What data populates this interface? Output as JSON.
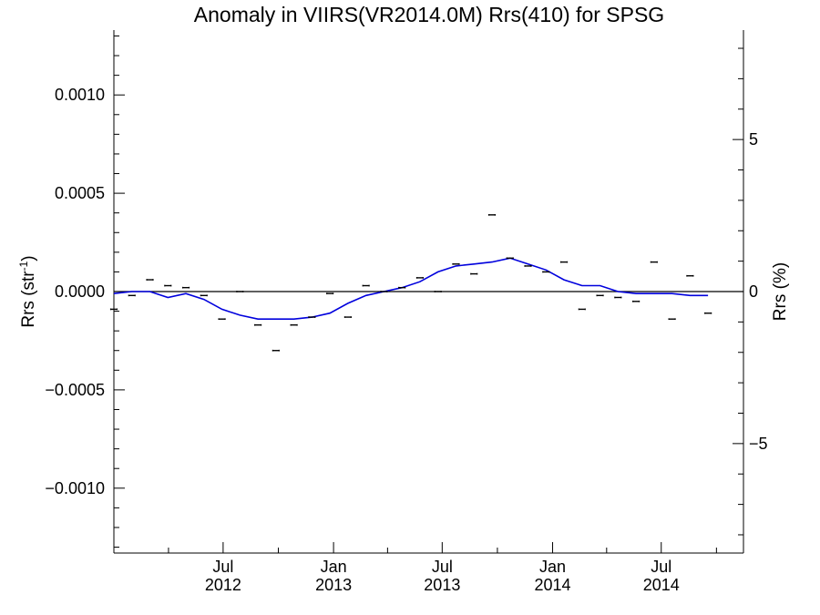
{
  "chart_data": {
    "type": "line",
    "title": "Anomaly in VIIRS(VR2014.0M) Rrs(410) for SPSG",
    "ylabel_left": "Rrs (str",
    "ylabel_left_sup": "-1",
    "ylabel_left_close": ")",
    "ylabel_right": "Rrs (%)",
    "xlabel": "",
    "xlim": [
      "2012-01-01",
      "2014-11-15"
    ],
    "ylim": [
      -0.00133,
      0.00133
    ],
    "ylim_right": [
      -8.6,
      8.6
    ],
    "y_ticks": [
      {
        "value": 0.001,
        "label": "0.0010"
      },
      {
        "value": 0.0005,
        "label": "0.0005"
      },
      {
        "value": 0.0,
        "label": "0.0000"
      },
      {
        "value": -0.0005,
        "label": "−0.0005"
      },
      {
        "value": -0.001,
        "label": "−0.0010"
      }
    ],
    "y_right_ticks": [
      {
        "value": 5,
        "label": "5"
      },
      {
        "value": 0,
        "label": "0"
      },
      {
        "value": -5,
        "label": "−5"
      }
    ],
    "x_ticks": [
      {
        "date": "2012-07-01",
        "month": "Jul",
        "year": "2012"
      },
      {
        "date": "2013-01-01",
        "month": "Jan",
        "year": "2013"
      },
      {
        "date": "2013-07-01",
        "month": "Jul",
        "year": "2013"
      },
      {
        "date": "2014-01-01",
        "month": "Jan",
        "year": "2014"
      },
      {
        "date": "2014-07-01",
        "month": "Jul",
        "year": "2014"
      }
    ],
    "reference_line": 0,
    "points": [
      {
        "x": "2012-01-01",
        "y": -9e-05
      },
      {
        "x": "2012-01-31",
        "y": -2e-05
      },
      {
        "x": "2012-03-01",
        "y": 6e-05
      },
      {
        "x": "2012-03-31",
        "y": 3e-05
      },
      {
        "x": "2012-04-30",
        "y": 2e-05
      },
      {
        "x": "2012-05-30",
        "y": -2e-05
      },
      {
        "x": "2012-06-29",
        "y": -0.00014
      },
      {
        "x": "2012-07-29",
        "y": 0.0
      },
      {
        "x": "2012-08-28",
        "y": -0.00017
      },
      {
        "x": "2012-09-27",
        "y": -0.0003
      },
      {
        "x": "2012-10-27",
        "y": -0.00017
      },
      {
        "x": "2012-11-26",
        "y": -0.00013
      },
      {
        "x": "2012-12-26",
        "y": -1e-05
      },
      {
        "x": "2013-01-25",
        "y": -0.00013
      },
      {
        "x": "2013-02-24",
        "y": 3e-05
      },
      {
        "x": "2013-03-26",
        "y": 0.0
      },
      {
        "x": "2013-04-25",
        "y": 2e-05
      },
      {
        "x": "2013-05-25",
        "y": 7e-05
      },
      {
        "x": "2013-06-24",
        "y": 0.0
      },
      {
        "x": "2013-07-24",
        "y": 0.00014
      },
      {
        "x": "2013-08-23",
        "y": 9e-05
      },
      {
        "x": "2013-09-22",
        "y": 0.00039
      },
      {
        "x": "2013-10-22",
        "y": 0.00017
      },
      {
        "x": "2013-11-21",
        "y": 0.00013
      },
      {
        "x": "2013-12-21",
        "y": 0.0001
      },
      {
        "x": "2014-01-20",
        "y": 0.00015
      },
      {
        "x": "2014-02-19",
        "y": -9e-05
      },
      {
        "x": "2014-03-21",
        "y": -2e-05
      },
      {
        "x": "2014-04-20",
        "y": -3e-05
      },
      {
        "x": "2014-05-20",
        "y": -5e-05
      },
      {
        "x": "2014-06-19",
        "y": 0.00015
      },
      {
        "x": "2014-07-19",
        "y": -0.00014
      },
      {
        "x": "2014-08-18",
        "y": 8e-05
      },
      {
        "x": "2014-09-17",
        "y": -0.00011
      }
    ],
    "smooth_line": [
      {
        "x": "2012-01-01",
        "y": -1e-05
      },
      {
        "x": "2012-01-31",
        "y": 0.0
      },
      {
        "x": "2012-03-01",
        "y": 0.0
      },
      {
        "x": "2012-03-31",
        "y": -3e-05
      },
      {
        "x": "2012-04-30",
        "y": -1e-05
      },
      {
        "x": "2012-05-30",
        "y": -4e-05
      },
      {
        "x": "2012-06-29",
        "y": -9e-05
      },
      {
        "x": "2012-07-29",
        "y": -0.00012
      },
      {
        "x": "2012-08-28",
        "y": -0.00014
      },
      {
        "x": "2012-09-27",
        "y": -0.00014
      },
      {
        "x": "2012-10-27",
        "y": -0.00014
      },
      {
        "x": "2012-11-26",
        "y": -0.00013
      },
      {
        "x": "2012-12-26",
        "y": -0.00011
      },
      {
        "x": "2013-01-25",
        "y": -6e-05
      },
      {
        "x": "2013-02-24",
        "y": -2e-05
      },
      {
        "x": "2013-03-26",
        "y": 0.0
      },
      {
        "x": "2013-04-25",
        "y": 2e-05
      },
      {
        "x": "2013-05-25",
        "y": 5e-05
      },
      {
        "x": "2013-06-24",
        "y": 0.0001
      },
      {
        "x": "2013-07-24",
        "y": 0.00013
      },
      {
        "x": "2013-08-23",
        "y": 0.00014
      },
      {
        "x": "2013-09-22",
        "y": 0.00015
      },
      {
        "x": "2013-10-22",
        "y": 0.00017
      },
      {
        "x": "2013-11-21",
        "y": 0.00014
      },
      {
        "x": "2013-12-21",
        "y": 0.00011
      },
      {
        "x": "2014-01-20",
        "y": 6e-05
      },
      {
        "x": "2014-02-19",
        "y": 3e-05
      },
      {
        "x": "2014-03-21",
        "y": 3e-05
      },
      {
        "x": "2014-04-20",
        "y": 0.0
      },
      {
        "x": "2014-05-20",
        "y": -1e-05
      },
      {
        "x": "2014-06-19",
        "y": -1e-05
      },
      {
        "x": "2014-07-19",
        "y": -1e-05
      },
      {
        "x": "2014-08-18",
        "y": -2e-05
      },
      {
        "x": "2014-09-17",
        "y": -2e-05
      }
    ],
    "error_bar": 4e-06,
    "colors": {
      "smooth_line": "#0000dd",
      "points": "#000000",
      "axes": "#000000"
    },
    "grid": false
  }
}
